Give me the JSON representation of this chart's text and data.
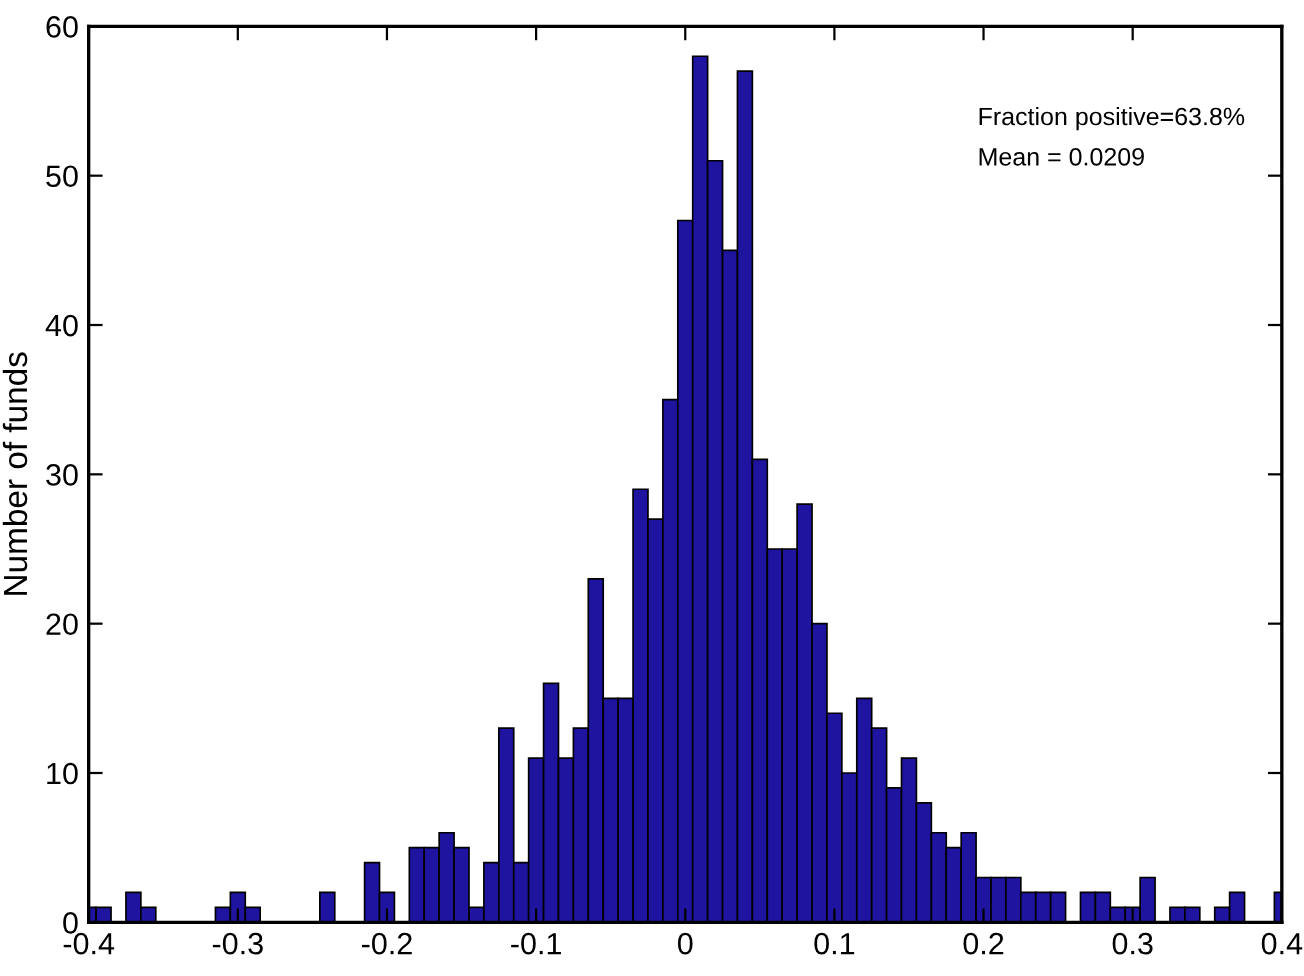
{
  "chart_data": {
    "type": "histogram",
    "ylabel": "Number of funds",
    "annotations": [
      "Fraction positive=63.8%",
      "Mean = 0.0209"
    ],
    "bins": [
      -0.405,
      -0.395,
      -0.385,
      -0.375,
      -0.365,
      -0.355,
      -0.345,
      -0.335,
      -0.325,
      -0.315,
      -0.305,
      -0.295,
      -0.285,
      -0.275,
      -0.265,
      -0.255,
      -0.245,
      -0.235,
      -0.225,
      -0.215,
      -0.205,
      -0.195,
      -0.185,
      -0.175,
      -0.165,
      -0.155,
      -0.145,
      -0.135,
      -0.125,
      -0.115,
      -0.105,
      -0.095,
      -0.085,
      -0.075,
      -0.065,
      -0.055,
      -0.045,
      -0.035,
      -0.025,
      -0.015,
      -0.005,
      0.005,
      0.015,
      0.025,
      0.035,
      0.045,
      0.055,
      0.065,
      0.075,
      0.085,
      0.095,
      0.105,
      0.115,
      0.125,
      0.135,
      0.145,
      0.155,
      0.165,
      0.175,
      0.185,
      0.195,
      0.205,
      0.215,
      0.225,
      0.235,
      0.245,
      0.255,
      0.265,
      0.275,
      0.285,
      0.295,
      0.305,
      0.315,
      0.325,
      0.335,
      0.345,
      0.355,
      0.365,
      0.375,
      0.385,
      0.395,
      0.405
    ],
    "values": [
      1,
      1,
      0,
      2,
      1,
      0,
      0,
      0,
      0,
      1,
      2,
      1,
      0,
      0,
      0,
      0,
      2,
      0,
      0,
      4,
      2,
      0,
      5,
      5,
      6,
      5,
      1,
      4,
      13,
      4,
      11,
      16,
      11,
      13,
      23,
      15,
      15,
      29,
      27,
      35,
      47,
      58,
      51,
      45,
      57,
      31,
      25,
      25,
      28,
      20,
      14,
      10,
      15,
      13,
      9,
      11,
      8,
      6,
      5,
      6,
      3,
      3,
      3,
      2,
      2,
      2,
      0,
      2,
      2,
      1,
      1,
      3,
      0,
      1,
      1,
      0,
      1,
      2,
      0,
      0,
      2
    ],
    "color": "#1f14a0",
    "xlim": [
      -0.4,
      0.4
    ],
    "xticks": [
      -0.4,
      -0.3,
      -0.2,
      -0.1,
      0,
      0.1,
      0.2,
      0.3,
      0.4
    ],
    "ylim": [
      0,
      60
    ],
    "yticks": [
      0,
      10,
      20,
      30,
      40,
      50,
      60
    ],
    "grid": false,
    "legend": false
  }
}
